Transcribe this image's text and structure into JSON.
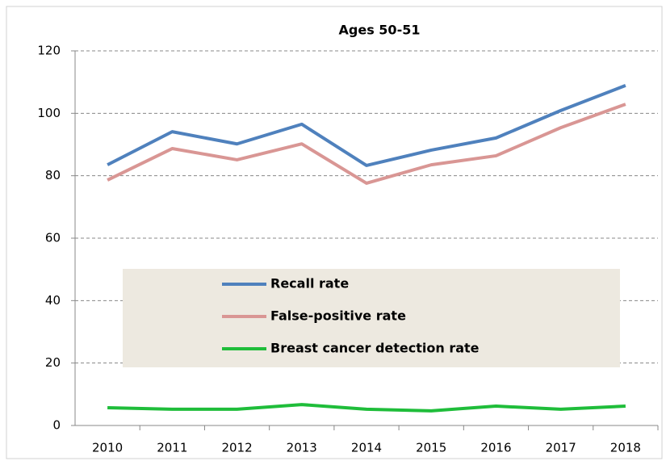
{
  "chart_data": {
    "type": "line",
    "title": "Ages 50-51",
    "categories": [
      "2010",
      "2011",
      "2012",
      "2013",
      "2014",
      "2015",
      "2016",
      "2017",
      "2018"
    ],
    "series": [
      {
        "name": "Recall rate",
        "color": "#4f81bd",
        "values": [
          83.5,
          94.1,
          90.2,
          96.5,
          83.3,
          88.2,
          92.1,
          100.9,
          108.9
        ]
      },
      {
        "name": "False-positive rate",
        "color": "#d99694",
        "values": [
          78.6,
          88.7,
          85.1,
          90.2,
          77.6,
          83.5,
          86.4,
          95.4,
          102.9
        ]
      },
      {
        "name": "Breast cancer detection rate",
        "color": "#1fbd3a",
        "values": [
          5.7,
          5.2,
          5.2,
          6.7,
          5.2,
          4.7,
          6.2,
          5.2,
          6.2
        ]
      }
    ],
    "ylim": [
      0,
      120
    ],
    "yticks": [
      0,
      20,
      40,
      60,
      80,
      100,
      120
    ],
    "grid": true
  }
}
